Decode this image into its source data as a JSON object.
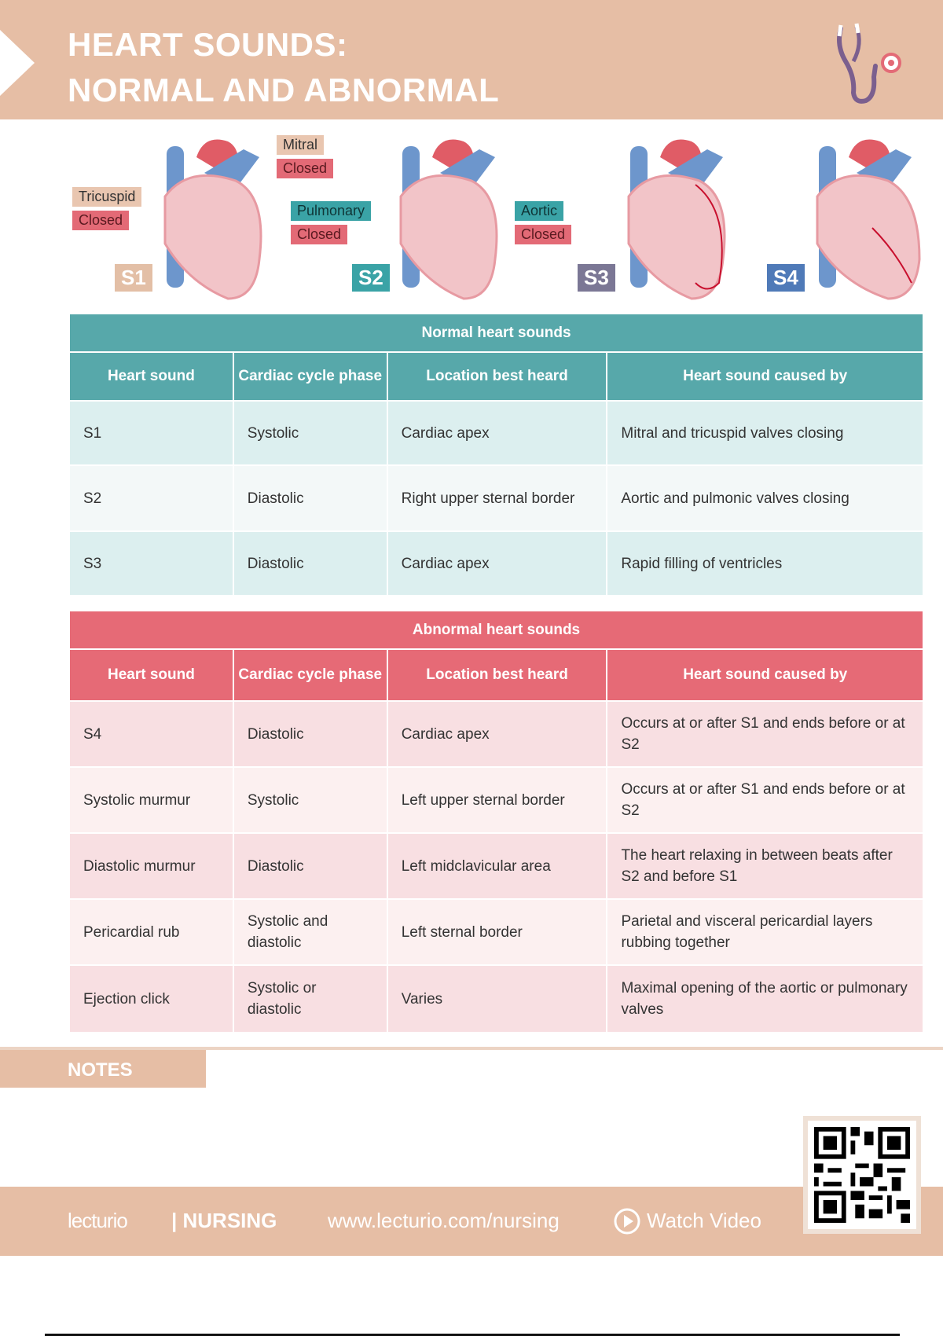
{
  "header": {
    "title_line1": "HEART SOUNDS:",
    "title_line2": "NORMAL AND ABNORMAL",
    "icon": "stethoscope-icon"
  },
  "figure": {
    "labels": {
      "tricuspid": "Tricuspid",
      "mitral": "Mitral",
      "pulmonary": "Pulmonary",
      "aortic": "Aortic",
      "closed": "Closed"
    },
    "badges": [
      {
        "label": "S1",
        "color": "#e3bfa6"
      },
      {
        "label": "S2",
        "color": "#3aa3a6"
      },
      {
        "label": "S3",
        "color": "#7b7795"
      },
      {
        "label": "S4",
        "color": "#4f7ab8"
      }
    ]
  },
  "normal": {
    "caption": "Normal heart sounds",
    "columns": [
      "Heart sound",
      "Cardiac cycle phase",
      "Location best heard",
      "Heart sound caused by"
    ],
    "rows": [
      [
        "S1",
        "Systolic",
        "Cardiac apex",
        "Mitral and tricuspid valves closing"
      ],
      [
        "S2",
        "Diastolic",
        "Right upper sternal border",
        "Aortic and pulmonic valves closing"
      ],
      [
        "S3",
        "Diastolic",
        "Cardiac apex",
        "Rapid filling of ventricles"
      ]
    ]
  },
  "abnormal": {
    "caption": "Abnormal heart sounds",
    "columns": [
      "Heart sound",
      "Cardiac cycle phase",
      "Location best heard",
      "Heart sound caused by"
    ],
    "rows": [
      [
        "S4",
        "Diastolic",
        "Cardiac apex",
        "Occurs at or after S1 and ends before or at S2"
      ],
      [
        "Systolic murmur",
        "Systolic",
        "Left upper sternal border",
        "Occurs at or after S1 and ends before or at S2"
      ],
      [
        "Diastolic murmur",
        "Diastolic",
        "Left midclavicular area",
        "The heart relaxing in between beats after S2 and before S1"
      ],
      [
        "Pericardial rub",
        "Systolic and diastolic",
        "Left sternal border",
        "Parietal and visceral pericardial layers rubbing together"
      ],
      [
        "Ejection click",
        "Systolic or diastolic",
        "Varies",
        "Maximal opening of the aortic or pulmonary valves"
      ]
    ]
  },
  "notes": {
    "label": "NOTES"
  },
  "footer": {
    "logo": "lecturio",
    "brand": "| NURSING",
    "url": "www.lecturio.com/nursing",
    "watch": "Watch Video"
  }
}
